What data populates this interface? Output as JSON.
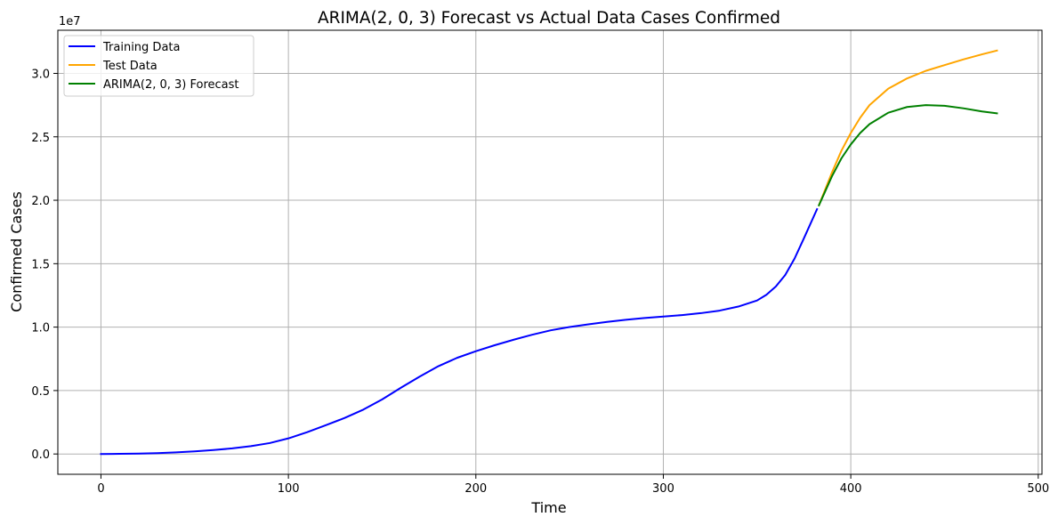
{
  "chart_data": {
    "type": "line",
    "title": "ARIMA(2, 0, 3) Forecast vs Actual Data Cases Confirmed",
    "xlabel": "Time",
    "ylabel": "Confirmed Cases",
    "y_offset_label": "1e7",
    "xlim": [
      -23,
      502
    ],
    "ylim": [
      -1600000,
      33400000
    ],
    "x_ticks": [
      0,
      100,
      200,
      300,
      400,
      500
    ],
    "x_tick_labels": [
      "0",
      "100",
      "200",
      "300",
      "400",
      "500"
    ],
    "y_ticks": [
      0,
      5000000,
      10000000,
      15000000,
      20000000,
      25000000,
      30000000
    ],
    "y_tick_labels": [
      "0.0",
      "0.5",
      "1.0",
      "1.5",
      "2.0",
      "2.5",
      "3.0"
    ],
    "grid": true,
    "legend_position": "top-left",
    "series": [
      {
        "name": "Training Data",
        "color": "#0000ff",
        "x": [
          0,
          10,
          20,
          30,
          40,
          50,
          60,
          70,
          80,
          90,
          100,
          110,
          120,
          130,
          140,
          150,
          160,
          170,
          180,
          190,
          200,
          210,
          220,
          230,
          240,
          250,
          260,
          270,
          280,
          290,
          300,
          310,
          320,
          330,
          340,
          350,
          355,
          360,
          365,
          370,
          375,
          382
        ],
        "y": [
          0,
          10000,
          30000,
          70000,
          130000,
          210000,
          310000,
          440000,
          620000,
          860000,
          1230000,
          1720000,
          2270000,
          2840000,
          3500000,
          4300000,
          5220000,
          6100000,
          6920000,
          7580000,
          8100000,
          8570000,
          9000000,
          9400000,
          9750000,
          10010000,
          10220000,
          10410000,
          10580000,
          10720000,
          10830000,
          10950000,
          11100000,
          11300000,
          11620000,
          12100000,
          12550000,
          13200000,
          14100000,
          15400000,
          17000000,
          19300000
        ]
      },
      {
        "name": "Test Data",
        "color": "#ffa500",
        "x": [
          383,
          390,
          395,
          400,
          405,
          410,
          420,
          430,
          440,
          450,
          460,
          470,
          478
        ],
        "y": [
          19600000,
          22200000,
          23900000,
          25300000,
          26500000,
          27500000,
          28800000,
          29600000,
          30200000,
          30650000,
          31100000,
          31500000,
          31800000
        ]
      },
      {
        "name": "ARIMA(2, 0, 3) Forecast",
        "color": "#008000",
        "x": [
          383,
          390,
          395,
          400,
          405,
          410,
          420,
          430,
          440,
          450,
          460,
          470,
          478
        ],
        "y": [
          19600000,
          21900000,
          23300000,
          24400000,
          25300000,
          26000000,
          26900000,
          27350000,
          27500000,
          27450000,
          27250000,
          27000000,
          26850000
        ]
      }
    ]
  }
}
